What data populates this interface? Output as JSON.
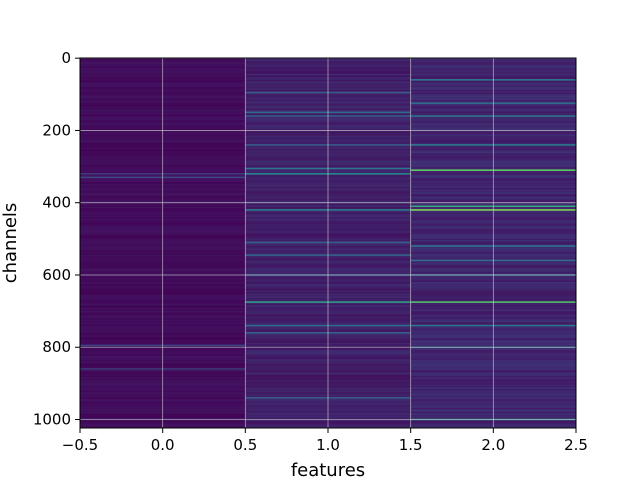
{
  "chart_data": {
    "type": "heatmap",
    "title": "",
    "xlabel": "features",
    "ylabel": "channels",
    "xlim": [
      -0.5,
      2.5
    ],
    "ylim": [
      1023.5,
      -0.5
    ],
    "y_inverted": true,
    "n_columns": 3,
    "n_rows": 1024,
    "x_ticks": [
      -0.5,
      0.0,
      0.5,
      1.0,
      1.5,
      2.0,
      2.5
    ],
    "x_tick_labels": [
      "−0.5",
      "0.0",
      "0.5",
      "1.0",
      "1.5",
      "2.0",
      "2.5"
    ],
    "y_ticks": [
      0,
      200,
      400,
      600,
      800,
      1000
    ],
    "y_tick_labels": [
      "0",
      "200",
      "400",
      "600",
      "800",
      "1000"
    ],
    "colormap": "viridis",
    "grid": true,
    "columns": [
      {
        "x": 0,
        "base_level": 0.04,
        "bright_rows": [
          {
            "row": 320,
            "value": 0.18
          },
          {
            "row": 330,
            "value": 0.22
          },
          {
            "row": 795,
            "value": 0.2
          },
          {
            "row": 860,
            "value": 0.16
          }
        ]
      },
      {
        "x": 1,
        "base_level": 0.1,
        "bright_rows": [
          {
            "row": 95,
            "value": 0.28
          },
          {
            "row": 150,
            "value": 0.35
          },
          {
            "row": 160,
            "value": 0.3
          },
          {
            "row": 240,
            "value": 0.28
          },
          {
            "row": 305,
            "value": 0.4
          },
          {
            "row": 320,
            "value": 0.45
          },
          {
            "row": 420,
            "value": 0.42
          },
          {
            "row": 510,
            "value": 0.3
          },
          {
            "row": 545,
            "value": 0.32
          },
          {
            "row": 600,
            "value": 0.28
          },
          {
            "row": 675,
            "value": 0.55
          },
          {
            "row": 740,
            "value": 0.35
          },
          {
            "row": 760,
            "value": 0.3
          },
          {
            "row": 940,
            "value": 0.28
          }
        ]
      },
      {
        "x": 2,
        "base_level": 0.12,
        "bright_rows": [
          {
            "row": 60,
            "value": 0.4
          },
          {
            "row": 125,
            "value": 0.35
          },
          {
            "row": 160,
            "value": 0.38
          },
          {
            "row": 240,
            "value": 0.4
          },
          {
            "row": 310,
            "value": 0.75
          },
          {
            "row": 410,
            "value": 0.6
          },
          {
            "row": 420,
            "value": 0.8
          },
          {
            "row": 520,
            "value": 0.38
          },
          {
            "row": 560,
            "value": 0.35
          },
          {
            "row": 600,
            "value": 0.35
          },
          {
            "row": 675,
            "value": 0.7
          },
          {
            "row": 740,
            "value": 0.4
          },
          {
            "row": 800,
            "value": 0.32
          },
          {
            "row": 1000,
            "value": 0.45
          }
        ]
      }
    ],
    "colors": {
      "base": "#440154",
      "grid": "#d8d8d8",
      "axis": "#000000"
    }
  }
}
